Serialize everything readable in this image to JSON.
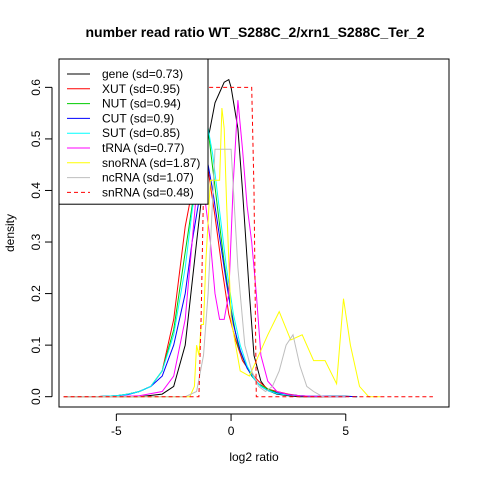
{
  "chart_data": {
    "type": "line",
    "title": "number read ratio WT_S288C_2/xrn1_S288C_Ter_2",
    "xlabel": "log2 ratio",
    "ylabel": "density",
    "xlim": [
      -7.5,
      9.5
    ],
    "ylim": [
      -0.02,
      0.655
    ],
    "xticks": [
      -5,
      0,
      5
    ],
    "yticks": [
      0.0,
      0.1,
      0.2,
      0.3,
      0.4,
      0.5,
      0.6
    ],
    "xtick_labels": [
      "-5",
      "0",
      "5"
    ],
    "ytick_labels": [
      "0.0",
      "0.1",
      "0.2",
      "0.3",
      "0.4",
      "0.5",
      "0.6"
    ],
    "legend_position": "top-left",
    "series": [
      {
        "name": "gene (sd=0.73)",
        "color": "#000000",
        "dash": false,
        "x": [
          -7.3,
          -6,
          -5,
          -4,
          -3,
          -2.5,
          -2,
          -1.5,
          -1.2,
          -1,
          -0.7,
          -0.5,
          -0.3,
          -0.1,
          0,
          0.3,
          0.5,
          0.8,
          1,
          1.3,
          1.6,
          2,
          2.5,
          3,
          3.5,
          4,
          4.5,
          5
        ],
        "y": [
          0,
          0,
          0,
          0,
          0.005,
          0.02,
          0.1,
          0.3,
          0.42,
          0.5,
          0.57,
          0.59,
          0.61,
          0.615,
          0.6,
          0.52,
          0.4,
          0.2,
          0.08,
          0.03,
          0.012,
          0.005,
          0.002,
          0,
          0,
          0,
          0,
          0
        ]
      },
      {
        "name": "XUT (sd=0.95)",
        "color": "#ff0000",
        "dash": false,
        "x": [
          -7.3,
          -6,
          -5,
          -4.5,
          -4,
          -3.5,
          -3,
          -2.5,
          -2,
          -1.7,
          -1.4,
          -1.2,
          -1,
          -0.7,
          -0.4,
          -0.1,
          0.2,
          0.5,
          0.8,
          1.2,
          1.6,
          2,
          2.5,
          3,
          3.5,
          4,
          4.5,
          5
        ],
        "y": [
          0,
          0,
          0.002,
          0.005,
          0.01,
          0.02,
          0.05,
          0.15,
          0.33,
          0.4,
          0.48,
          0.53,
          0.44,
          0.35,
          0.25,
          0.16,
          0.11,
          0.07,
          0.05,
          0.03,
          0.015,
          0.01,
          0.005,
          0.002,
          0.001,
          0,
          0,
          0
        ]
      },
      {
        "name": "NUT (sd=0.94)",
        "color": "#00cc00",
        "dash": false,
        "x": [
          -7.3,
          -6,
          -5,
          -4.5,
          -4,
          -3.5,
          -3,
          -2.5,
          -2,
          -1.6,
          -1.3,
          -1.1,
          -0.9,
          -0.6,
          -0.3,
          0,
          0.3,
          0.6,
          0.9,
          1.2,
          1.6,
          2,
          2.5,
          3,
          3.5,
          4,
          4.5,
          5,
          5.5
        ],
        "y": [
          0,
          0,
          0.002,
          0.005,
          0.01,
          0.02,
          0.05,
          0.13,
          0.28,
          0.4,
          0.5,
          0.56,
          0.48,
          0.37,
          0.26,
          0.17,
          0.1,
          0.065,
          0.04,
          0.025,
          0.015,
          0.008,
          0.004,
          0.002,
          0.001,
          0.001,
          0.001,
          0.001,
          0
        ]
      },
      {
        "name": "CUT (sd=0.9)",
        "color": "#0000ff",
        "dash": false,
        "x": [
          -7.3,
          -6,
          -5,
          -4.5,
          -4,
          -3.5,
          -3,
          -2.5,
          -2,
          -1.7,
          -1.4,
          -1.2,
          -1,
          -0.8,
          -0.5,
          -0.2,
          0.1,
          0.4,
          0.7,
          1,
          1.3,
          1.6,
          2,
          2.5,
          3,
          3.5,
          4,
          4.5,
          5,
          5.5
        ],
        "y": [
          0,
          0,
          0.002,
          0.004,
          0.01,
          0.02,
          0.04,
          0.1,
          0.2,
          0.3,
          0.38,
          0.455,
          0.45,
          0.4,
          0.31,
          0.22,
          0.14,
          0.09,
          0.055,
          0.035,
          0.02,
          0.012,
          0.007,
          0.004,
          0.002,
          0.001,
          0.001,
          0.001,
          0.001,
          0
        ]
      },
      {
        "name": "SUT (sd=0.85)",
        "color": "#00ffff",
        "dash": false,
        "x": [
          -7.3,
          -6,
          -5,
          -4.5,
          -4,
          -3.5,
          -3,
          -2.5,
          -2,
          -1.7,
          -1.4,
          -1.2,
          -1,
          -0.8,
          -0.5,
          -0.2,
          0.1,
          0.4,
          0.7,
          1,
          1.3,
          1.6,
          2,
          2.5,
          3,
          3.5,
          4,
          4.5,
          5
        ],
        "y": [
          0,
          0,
          0.002,
          0.005,
          0.01,
          0.02,
          0.05,
          0.12,
          0.25,
          0.36,
          0.45,
          0.5,
          0.52,
          0.47,
          0.36,
          0.25,
          0.16,
          0.1,
          0.06,
          0.035,
          0.02,
          0.012,
          0.006,
          0.003,
          0.002,
          0.001,
          0.001,
          0,
          0
        ]
      },
      {
        "name": "tRNA (sd=0.77)",
        "color": "#ff00ff",
        "dash": false,
        "x": [
          -7.3,
          -6,
          -5,
          -4,
          -3,
          -2.5,
          -2,
          -1.7,
          -1.5,
          -1.3,
          -1.1,
          -0.9,
          -0.7,
          -0.5,
          -0.3,
          -0.1,
          0.1,
          0.3,
          0.5,
          0.7,
          0.9,
          1.1,
          1.3,
          1.6,
          2,
          2.5,
          3,
          3.5,
          4,
          4.5,
          5
        ],
        "y": [
          0,
          0,
          0,
          0.002,
          0.01,
          0.04,
          0.15,
          0.3,
          0.4,
          0.44,
          0.37,
          0.3,
          0.2,
          0.15,
          0.15,
          0.2,
          0.42,
          0.575,
          0.48,
          0.37,
          0.3,
          0.2,
          0.08,
          0.03,
          0.01,
          0.004,
          0.002,
          0.001,
          0.001,
          0,
          0
        ]
      },
      {
        "name": "snoRNA (sd=1.87)",
        "color": "#ffff00",
        "dash": false,
        "x": [
          -7.3,
          -6,
          -5,
          -4,
          -3,
          -2,
          -1.8,
          -1.6,
          -1.5,
          -1.4,
          -1.3,
          -1.2,
          -1.1,
          -1.0,
          -0.9,
          -0.5,
          -0.4,
          -0.3,
          -0.2,
          0,
          0.4,
          0.8,
          1.2,
          1.6,
          2.1,
          2.6,
          3.1,
          3.6,
          4.1,
          4.6,
          4.9,
          5.2,
          5.6,
          6,
          6.5
        ],
        "y": [
          0,
          0,
          0,
          0,
          0,
          0,
          0,
          0.02,
          0.1,
          0.08,
          0.14,
          0.14,
          0.26,
          0.34,
          0.42,
          0.42,
          0.56,
          0.52,
          0.38,
          0.15,
          0.05,
          0.04,
          0.08,
          0.12,
          0.165,
          0.11,
          0.12,
          0.07,
          0.07,
          0.025,
          0.19,
          0.1,
          0.02,
          0,
          0
        ]
      },
      {
        "name": "ncRNA (sd=1.07)",
        "color": "#bebebe",
        "dash": false,
        "x": [
          -7.3,
          -6,
          -5,
          -4,
          -3,
          -2.5,
          -2,
          -1.5,
          -1.2,
          -1,
          -0.7,
          -0.3,
          0,
          0.3,
          0.6,
          0.9,
          1.2,
          1.5,
          1.8,
          2.1,
          2.4,
          2.7,
          3,
          3.3,
          3.6,
          4,
          5
        ],
        "y": [
          0,
          0,
          0,
          0,
          0,
          0,
          0,
          0.01,
          0.08,
          0.2,
          0.48,
          0.48,
          0.48,
          0.25,
          0.1,
          0.05,
          0.02,
          0.01,
          0.02,
          0.05,
          0.1,
          0.12,
          0.06,
          0.02,
          0.01,
          0,
          0
        ]
      },
      {
        "name": "snRNA (sd=0.48)",
        "color": "#ff0000",
        "dash": true,
        "x": [
          -7.3,
          -6,
          -5,
          -4,
          -3,
          -2,
          -1.4,
          -1.3,
          -1.2,
          -1.1,
          -0.1,
          0,
          0.9,
          1.0,
          1.1,
          2,
          3,
          4,
          5,
          6,
          7,
          8,
          8.8
        ],
        "y": [
          0,
          0,
          0,
          0,
          0,
          0,
          0,
          0.16,
          0.4,
          0.6,
          0.6,
          0.6,
          0.6,
          0.4,
          0,
          0,
          0,
          0,
          0,
          0,
          0,
          0,
          0
        ]
      }
    ]
  }
}
